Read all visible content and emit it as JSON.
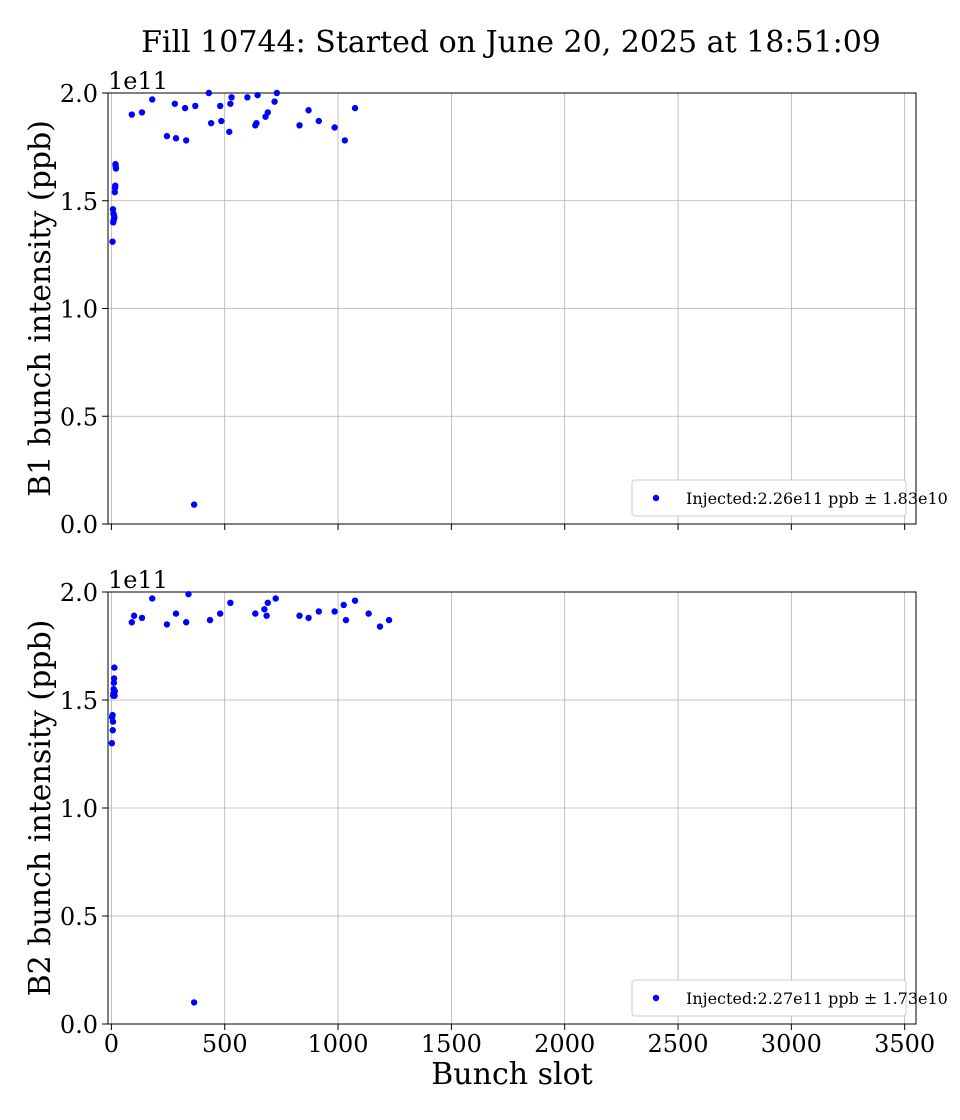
{
  "figure": {
    "title": "Fill 10744: Started on June 20, 2025 at 18:51:09"
  },
  "chart_data": [
    {
      "type": "scatter",
      "ylabel": "B1 bunch intensity (ppb)",
      "xlabel": "",
      "y_offset_label": "1e11",
      "xlim": [
        -15,
        3550
      ],
      "ylim": [
        0.0,
        2.0
      ],
      "x_ticks": [
        0,
        500,
        1000,
        1500,
        2000,
        2500,
        3000,
        3500
      ],
      "y_ticks": [
        0.0,
        0.5,
        1.0,
        1.5,
        2.0
      ],
      "y_tick_labels": [
        "0.0",
        "0.5",
        "1.0",
        "1.5",
        "2.0"
      ],
      "x_tick_labels_shown": false,
      "grid": true,
      "legend_position": "lower-right",
      "series": [
        {
          "name": "Injected:2.26e11 ppb ± 1.83e10",
          "color": "#0000ff",
          "marker": "circle",
          "x": [
            5,
            7,
            8,
            9,
            10,
            12,
            13,
            15,
            16,
            17,
            18,
            19,
            20,
            90,
            135,
            180,
            245,
            280,
            285,
            325,
            330,
            365,
            370,
            430,
            440,
            480,
            485,
            520,
            525,
            530,
            600,
            635,
            640,
            645,
            680,
            690,
            720,
            730,
            830,
            870,
            915,
            985,
            1030,
            1075
          ],
          "y": [
            1.31,
            1.46,
            1.4,
            1.44,
            1.41,
            1.43,
            1.42,
            1.54,
            1.56,
            1.57,
            1.67,
            1.66,
            1.65,
            1.9,
            1.91,
            1.97,
            1.8,
            1.95,
            1.79,
            1.93,
            1.78,
            0.09,
            1.94,
            2.0,
            1.86,
            1.94,
            1.87,
            1.82,
            1.95,
            1.98,
            1.98,
            1.85,
            1.86,
            1.99,
            1.89,
            1.91,
            1.96,
            2.0,
            1.85,
            1.92,
            1.87,
            1.84,
            1.78,
            1.93
          ]
        }
      ]
    },
    {
      "type": "scatter",
      "ylabel": "B2 bunch intensity (ppb)",
      "xlabel": "Bunch slot",
      "y_offset_label": "1e11",
      "xlim": [
        -15,
        3550
      ],
      "ylim": [
        0.0,
        2.0
      ],
      "x_ticks": [
        0,
        500,
        1000,
        1500,
        2000,
        2500,
        3000,
        3500
      ],
      "x_tick_labels": [
        "0",
        "500",
        "1000",
        "1500",
        "2000",
        "2500",
        "3000",
        "3500"
      ],
      "y_ticks": [
        0.0,
        0.5,
        1.0,
        1.5,
        2.0
      ],
      "y_tick_labels": [
        "0.0",
        "0.5",
        "1.0",
        "1.5",
        "2.0"
      ],
      "grid": true,
      "legend_position": "lower-right",
      "series": [
        {
          "name": "Injected:2.27e11 ppb ± 1.73e10",
          "color": "#0000ff",
          "marker": "circle",
          "x": [
            2,
            3,
            5,
            6,
            7,
            8,
            9,
            10,
            11,
            12,
            13,
            14,
            15,
            90,
            100,
            135,
            180,
            245,
            285,
            330,
            340,
            365,
            435,
            480,
            525,
            635,
            675,
            685,
            690,
            725,
            830,
            870,
            915,
            985,
            1025,
            1035,
            1075,
            1135,
            1185,
            1225
          ],
          "y": [
            1.3,
            1.42,
            1.43,
            1.36,
            1.4,
            1.52,
            1.53,
            1.55,
            1.58,
            1.6,
            1.65,
            1.52,
            1.54,
            1.86,
            1.89,
            1.88,
            1.97,
            1.85,
            1.9,
            1.86,
            1.99,
            0.1,
            1.87,
            1.9,
            1.95,
            1.9,
            1.92,
            1.89,
            1.95,
            1.97,
            1.89,
            1.88,
            1.91,
            1.91,
            1.94,
            1.87,
            1.96,
            1.9,
            1.84,
            1.87
          ]
        }
      ]
    }
  ]
}
